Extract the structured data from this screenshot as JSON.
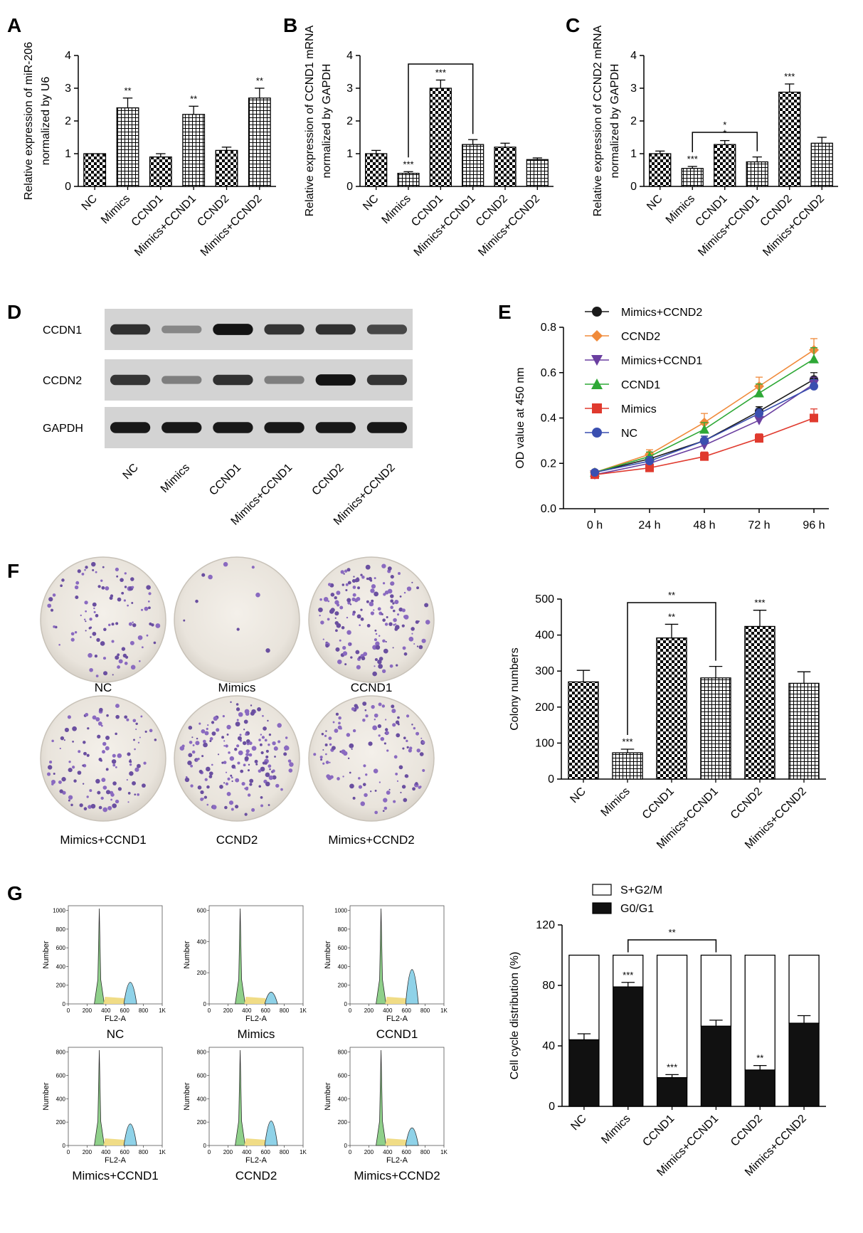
{
  "panels": {
    "A": "A",
    "B": "B",
    "C": "C",
    "D": "D",
    "E": "E",
    "F": "F",
    "G": "G"
  },
  "groups": [
    "NC",
    "Mimics",
    "CCND1",
    "Mimics+CCND1",
    "CCND2",
    "Mimics+CCND2"
  ],
  "blot": {
    "rows": [
      "CCDN1",
      "CCDN2",
      "GAPDH"
    ],
    "intensity": [
      [
        0.82,
        0.35,
        0.98,
        0.8,
        0.82,
        0.7
      ],
      [
        0.8,
        0.4,
        0.82,
        0.4,
        0.98,
        0.8
      ],
      [
        0.95,
        0.95,
        0.95,
        0.95,
        0.95,
        0.95
      ]
    ]
  },
  "plates": {
    "labels": [
      "NC",
      "Mimics",
      "CCND1",
      "Mimics+CCND1",
      "CCND2",
      "Mimics+CCND2"
    ],
    "density": [
      0.45,
      0.04,
      0.75,
      0.5,
      0.8,
      0.55
    ]
  },
  "histograms": {
    "labels": [
      "NC",
      "Mimics",
      "CCND1",
      "Mimics+CCND1",
      "CCND2",
      "Mimics+CCND2"
    ],
    "xlabel": "FL2-A",
    "ylabel": "Number",
    "xticks": [
      "0",
      "200",
      "400",
      "600",
      "800",
      "1K"
    ],
    "yticks": [
      [
        "0",
        "200",
        "400",
        "600",
        "800",
        "1000"
      ],
      [
        "0",
        "200",
        "400",
        "600"
      ],
      [
        "0",
        "200",
        "400",
        "600",
        "800",
        "1000"
      ],
      [
        "0",
        "200",
        "400",
        "600",
        "800"
      ],
      [
        "0",
        "200",
        "400",
        "600",
        "800"
      ],
      [
        "0",
        "200",
        "400",
        "600",
        "800"
      ]
    ],
    "g2_height": [
      0.22,
      0.12,
      0.35,
      0.22,
      0.25,
      0.18
    ]
  },
  "chart_data": [
    {
      "panel": "A",
      "type": "bar",
      "categories": [
        "NC",
        "Mimics",
        "CCND1",
        "Mimics+CCND1",
        "CCND2",
        "Mimics+CCND2"
      ],
      "values": [
        1.0,
        2.4,
        0.9,
        2.2,
        1.1,
        2.7
      ],
      "errors": [
        0.0,
        0.3,
        0.1,
        0.25,
        0.1,
        0.3
      ],
      "significance": [
        "",
        "**",
        "",
        "**",
        "",
        "**"
      ],
      "ylabel_lines": [
        "Relative expression of miR-206",
        "normalized by U6"
      ],
      "ylim": [
        0,
        4
      ],
      "yticks": [
        "0",
        "1",
        "2",
        "3",
        "4"
      ]
    },
    {
      "panel": "B",
      "type": "bar",
      "categories": [
        "NC",
        "Mimics",
        "CCND1",
        "Mimics+CCND1",
        "CCND2",
        "Mimics+CCND2"
      ],
      "values": [
        1.0,
        0.4,
        3.0,
        1.28,
        1.2,
        0.82
      ],
      "errors": [
        0.1,
        0.05,
        0.25,
        0.15,
        0.12,
        0.05
      ],
      "significance": [
        "",
        "***",
        "***",
        "",
        "",
        ""
      ],
      "bracket": {
        "from": 1,
        "to": 3,
        "label": ""
      },
      "ylabel_lines": [
        "Relative expression of CCND1 mRNA",
        "normalized by GAPDH"
      ],
      "ylim": [
        0,
        4
      ],
      "yticks": [
        "0",
        "1",
        "2",
        "3",
        "4"
      ]
    },
    {
      "panel": "C",
      "type": "bar",
      "categories": [
        "NC",
        "Mimics",
        "CCND1",
        "Mimics+CCND1",
        "CCND2",
        "Mimics+CCND2"
      ],
      "values": [
        1.0,
        0.55,
        1.28,
        0.75,
        2.88,
        1.32
      ],
      "errors": [
        0.08,
        0.06,
        0.12,
        0.15,
        0.25,
        0.18
      ],
      "significance": [
        "",
        "***",
        "*",
        "",
        "***",
        ""
      ],
      "bracket": {
        "from": 1,
        "to": 3,
        "label": "*"
      },
      "ylabel_lines": [
        "Relative expression of CCND2 mRNA",
        "normalized by GAPDH"
      ],
      "ylim": [
        0,
        4
      ],
      "yticks": [
        "0",
        "1",
        "2",
        "3",
        "4"
      ]
    },
    {
      "panel": "E",
      "type": "line",
      "x": [
        "0 h",
        "24 h",
        "48 h",
        "72 h",
        "96 h"
      ],
      "ylabel": "OD value at 450 nm",
      "ylim": [
        0,
        0.8
      ],
      "yticks": [
        "0.0",
        "0.2",
        "0.4",
        "0.6",
        "0.8"
      ],
      "legend_position": "top-left",
      "series": [
        {
          "name": "Mimics+CCND2",
          "color": "#1a1a1a",
          "marker": "circle",
          "values": [
            0.16,
            0.22,
            0.3,
            0.43,
            0.57
          ],
          "errors": [
            0.01,
            0.02,
            0.02,
            0.02,
            0.03
          ]
        },
        {
          "name": "CCND2",
          "color": "#f08a3a",
          "marker": "diamond",
          "values": [
            0.16,
            0.24,
            0.38,
            0.54,
            0.7
          ],
          "errors": [
            0.01,
            0.02,
            0.04,
            0.04,
            0.05
          ]
        },
        {
          "name": "Mimics+CCND1",
          "color": "#6a3fa0",
          "marker": "triangle-down",
          "values": [
            0.15,
            0.2,
            0.28,
            0.39,
            0.55
          ],
          "errors": [
            0.01,
            0.02,
            0.02,
            0.02,
            0.03
          ]
        },
        {
          "name": "CCND1",
          "color": "#2ea836",
          "marker": "triangle-up",
          "values": [
            0.16,
            0.23,
            0.35,
            0.51,
            0.66
          ],
          "errors": [
            0.01,
            0.02,
            0.03,
            0.04,
            0.05
          ]
        },
        {
          "name": "Mimics",
          "color": "#e03a2e",
          "marker": "square",
          "values": [
            0.15,
            0.18,
            0.23,
            0.31,
            0.4
          ],
          "errors": [
            0.01,
            0.01,
            0.02,
            0.02,
            0.04
          ]
        },
        {
          "name": "NC",
          "color": "#3a4fb0",
          "marker": "circle",
          "values": [
            0.16,
            0.21,
            0.3,
            0.42,
            0.54
          ],
          "errors": [
            0.01,
            0.02,
            0.02,
            0.02,
            0.03
          ]
        }
      ]
    },
    {
      "panel": "F",
      "type": "bar",
      "categories": [
        "NC",
        "Mimics",
        "CCND1",
        "Mimics+CCND1",
        "CCND2",
        "Mimics+CCND2"
      ],
      "values": [
        270,
        73,
        392,
        281,
        424,
        266
      ],
      "errors": [
        32,
        10,
        38,
        32,
        45,
        32
      ],
      "significance": [
        "",
        "***",
        "**",
        "",
        "***",
        ""
      ],
      "bracket": {
        "from": 1,
        "to": 3,
        "label": "**"
      },
      "ylabel": "Colony numbers",
      "ylim": [
        0,
        500
      ],
      "yticks": [
        "0",
        "100",
        "200",
        "300",
        "400",
        "500"
      ]
    },
    {
      "panel": "G",
      "type": "bar",
      "stacked": true,
      "categories": [
        "NC",
        "Mimics",
        "CCND1",
        "Mimics+CCND1",
        "CCND2",
        "Mimics+CCND2"
      ],
      "series": [
        {
          "name": "G0/G1",
          "color": "#111111",
          "values": [
            44,
            79,
            19,
            53,
            24,
            55
          ],
          "errors": [
            4,
            3,
            2,
            4,
            3,
            5
          ]
        },
        {
          "name": "S+G2/M",
          "color": "#ffffff",
          "values": [
            56,
            21,
            81,
            47,
            76,
            45
          ]
        }
      ],
      "significance": [
        "",
        "***",
        "***",
        "",
        "**",
        ""
      ],
      "bracket": {
        "from": 1,
        "to": 3,
        "label": "**"
      },
      "legend_order": [
        "S+G2/M",
        "G0/G1"
      ],
      "ylabel": "Cell cycle distribution (%)",
      "ylim": [
        0,
        120
      ],
      "yticks": [
        "0",
        "40",
        "80",
        "120"
      ]
    }
  ]
}
